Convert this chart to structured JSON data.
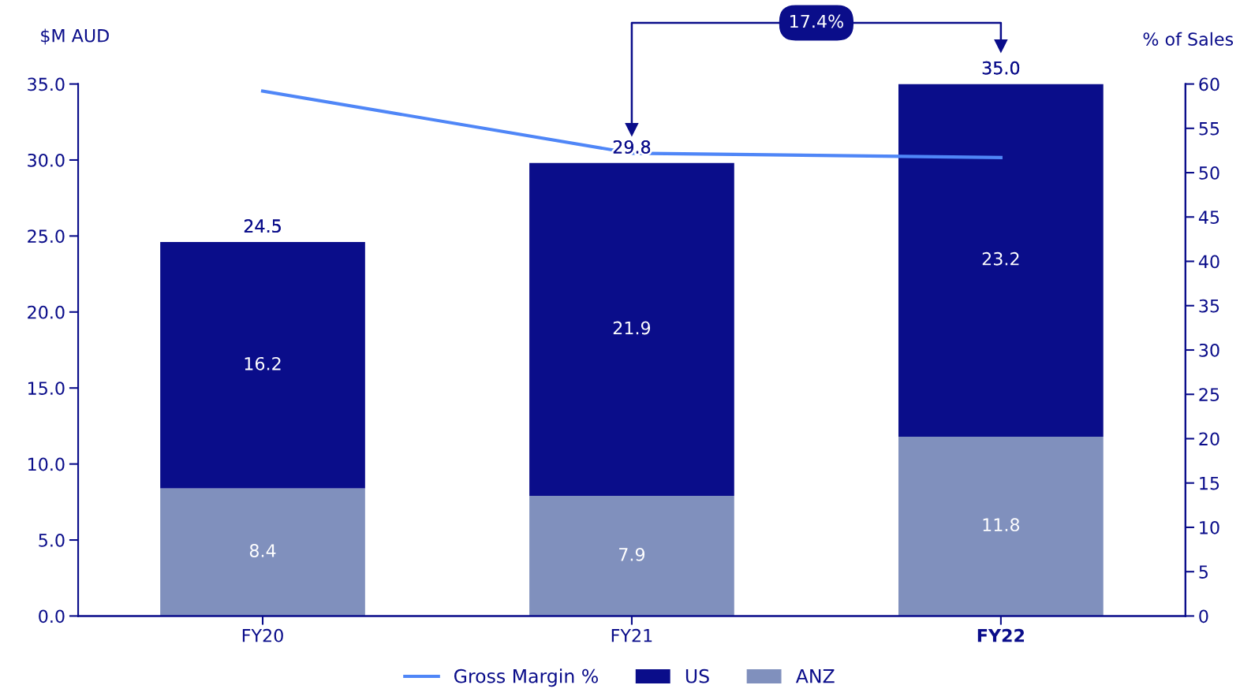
{
  "chart_data": {
    "type": "bar",
    "stacked": true,
    "ylabel": "$M AUD",
    "y2label": "% of Sales",
    "categories": [
      "FY20",
      "FY21",
      "FY22"
    ],
    "series": [
      {
        "name": "Gross Margin %",
        "type": "line",
        "axis": "y2",
        "color": "#4f86f7",
        "values": [
          59.2,
          52.2,
          51.7
        ]
      },
      {
        "name": "ANZ",
        "color": "#8090bd",
        "values": [
          8.4,
          7.9,
          11.8
        ],
        "value_labels": [
          "8.4",
          "7.9",
          "11.8"
        ]
      },
      {
        "name": "US",
        "color": "#0a0d8a",
        "values": [
          16.2,
          21.9,
          23.2
        ],
        "value_labels": [
          "16.2",
          "21.9",
          "23.2"
        ]
      }
    ],
    "totals": [
      "24.5",
      "29.8",
      "35.0"
    ],
    "ylim": [
      0,
      35
    ],
    "yticks": [
      {
        "value": 0,
        "label": "0.0"
      },
      {
        "value": 5,
        "label": "5.0"
      },
      {
        "value": 10,
        "label": "10.0"
      },
      {
        "value": 15,
        "label": "15.0"
      },
      {
        "value": 20,
        "label": "20.0"
      },
      {
        "value": 25,
        "label": "25.0"
      },
      {
        "value": 30,
        "label": "30.0"
      },
      {
        "value": 35,
        "label": "35.0"
      }
    ],
    "y2lim": [
      0,
      60
    ],
    "y2ticks": [
      0,
      5,
      10,
      15,
      20,
      25,
      30,
      35,
      40,
      45,
      50,
      55,
      60
    ],
    "annotations": [
      "17.4%"
    ],
    "legend": "bottom",
    "grid": false
  }
}
